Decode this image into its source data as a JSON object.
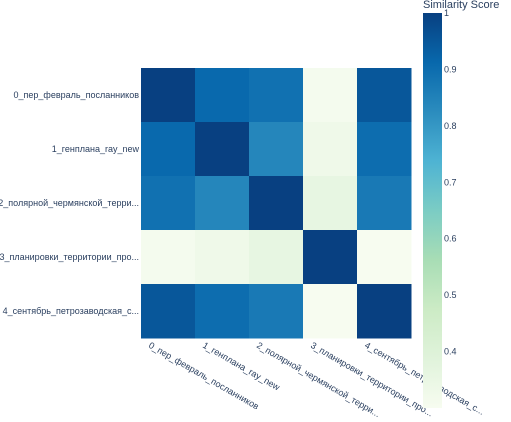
{
  "chart_data": {
    "type": "heatmap",
    "title": "",
    "xlabel": "",
    "ylabel": "",
    "categories": [
      "0_пер_февраль_посланников",
      "1_генплана_ray_new",
      "2_полярной_чермянской_терри...",
      "3_планировки_территории_про...",
      "4_сентябрь_петрозаводская_с..."
    ],
    "values": [
      [
        1.0,
        0.91,
        0.89,
        0.31,
        0.95
      ],
      [
        0.91,
        1.0,
        0.84,
        0.33,
        0.9
      ],
      [
        0.89,
        0.84,
        1.0,
        0.36,
        0.87
      ],
      [
        0.31,
        0.33,
        0.36,
        1.0,
        0.3
      ],
      [
        0.95,
        0.9,
        0.87,
        0.3,
        1.0
      ]
    ],
    "colorbar": {
      "title": "Similarity Score",
      "tick_values": [
        0.4,
        0.5,
        0.6,
        0.7,
        0.8,
        0.9,
        1
      ],
      "tick_labels": [
        "0.4",
        "0.5",
        "0.6",
        "0.7",
        "0.8",
        "0.9",
        "1"
      ],
      "range": [
        0.3,
        1.0
      ],
      "colorscale": "GnBu"
    }
  }
}
